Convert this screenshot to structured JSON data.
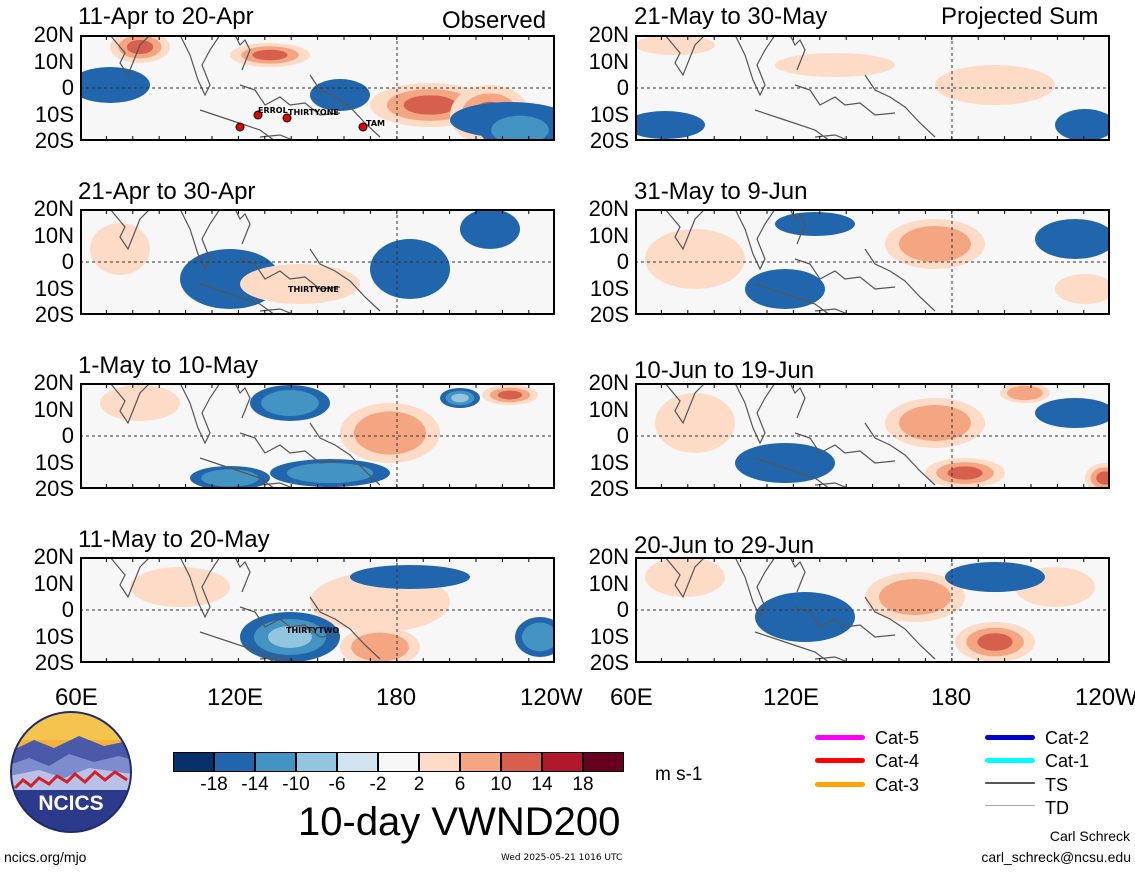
{
  "figure": {
    "title": "10-day VWND200",
    "units": "m s-1",
    "footer_left": "ncics.org/mjo",
    "footer_center": "Wed 2025-05-21 1016 UTC",
    "author": "Carl Schreck",
    "email": "carl_schreck@ncsu.edu",
    "logo_text": "NCICS"
  },
  "columns": {
    "left_tag": "Observed",
    "right_tag": "Projected Sum"
  },
  "lat_labels": [
    "20N",
    "10N",
    "0",
    "10S",
    "20S"
  ],
  "lon_labels": [
    "60E",
    "120E",
    "180",
    "120W"
  ],
  "panels": {
    "left": [
      {
        "title": "11-Apr to 20-Apr",
        "storms": [
          "ERROL",
          "THIRTYONE",
          "TAM"
        ]
      },
      {
        "title": "21-Apr to 30-Apr",
        "storms": [
          "THIRTYONE"
        ]
      },
      {
        "title": "1-May to 10-May",
        "storms": []
      },
      {
        "title": "11-May to 20-May",
        "storms": [
          "THIRTYTWO"
        ]
      }
    ],
    "right": [
      {
        "title": "21-May to 30-May"
      },
      {
        "title": "31-May to 9-Jun"
      },
      {
        "title": "10-Jun to 19-Jun"
      },
      {
        "title": "20-Jun to 29-Jun"
      }
    ]
  },
  "colorbar": {
    "ticks": [
      "-18",
      "-14",
      "-10",
      "-6",
      "-2",
      "2",
      "6",
      "10",
      "14",
      "18"
    ],
    "colors": [
      "#08306b",
      "#2166ac",
      "#4393c3",
      "#92c5de",
      "#d1e5f0",
      "#f7f7f7",
      "#fddbc7",
      "#f4a582",
      "#d6604d",
      "#b2182b",
      "#67001f"
    ]
  },
  "legend": [
    {
      "label": "Cat-5",
      "color": "#ff00ff",
      "width": 5
    },
    {
      "label": "Cat-4",
      "color": "#ff0000",
      "width": 5
    },
    {
      "label": "Cat-3",
      "color": "#ffa500",
      "width": 5
    },
    {
      "label": "Cat-2",
      "color": "#0000cc",
      "width": 5
    },
    {
      "label": "Cat-1",
      "color": "#00ffff",
      "width": 5
    },
    {
      "label": "TS",
      "color": "#555555",
      "width": 2
    },
    {
      "label": "TD",
      "color": "#aaaaaa",
      "width": 1
    }
  ]
}
